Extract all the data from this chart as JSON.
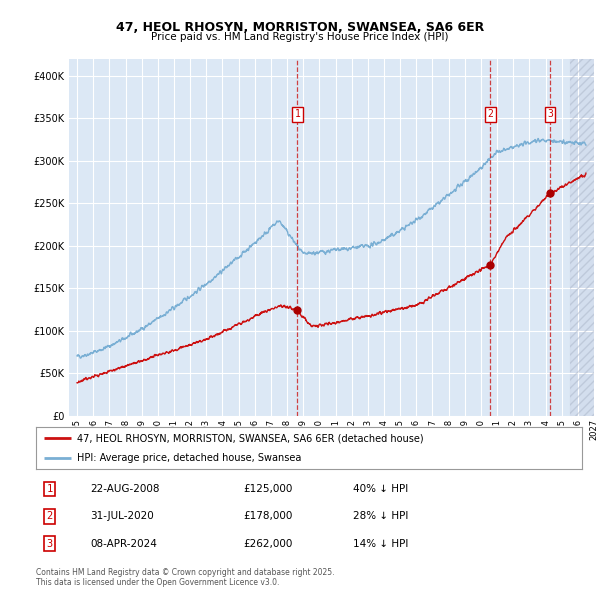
{
  "title": "47, HEOL RHOSYN, MORRISTON, SWANSEA, SA6 6ER",
  "subtitle": "Price paid vs. HM Land Registry's House Price Index (HPI)",
  "plot_bg": "#dce8f5",
  "red_line_label": "47, HEOL RHOSYN, MORRISTON, SWANSEA, SA6 6ER (detached house)",
  "blue_line_label": "HPI: Average price, detached house, Swansea",
  "transactions": [
    {
      "num": 1,
      "date": "22-AUG-2008",
      "price": 125000,
      "hpi_pct": "40% ↓ HPI",
      "year": 2008.64
    },
    {
      "num": 2,
      "date": "31-JUL-2020",
      "price": 178000,
      "hpi_pct": "28% ↓ HPI",
      "year": 2020.58
    },
    {
      "num": 3,
      "date": "08-APR-2024",
      "price": 262000,
      "hpi_pct": "14% ↓ HPI",
      "year": 2024.27
    }
  ],
  "footnote": "Contains HM Land Registry data © Crown copyright and database right 2025.\nThis data is licensed under the Open Government Licence v3.0.",
  "ylim": [
    0,
    420000
  ],
  "xlim_start": 1994.5,
  "xlim_end": 2027.0,
  "future_start": 2025.5
}
